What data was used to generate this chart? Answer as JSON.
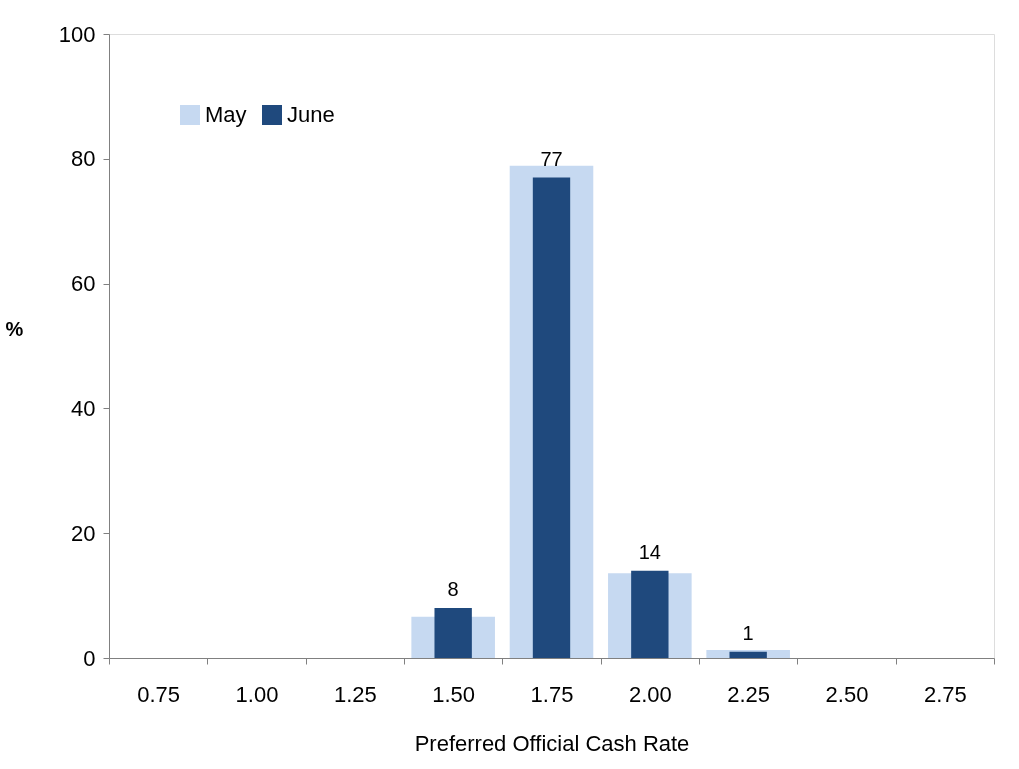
{
  "chart_data": {
    "type": "bar",
    "xlabel": "Preferred  Official Cash Rate",
    "ylabel": "%",
    "categories": [
      "0.75",
      "1.00",
      "1.25",
      "1.50",
      "1.75",
      "2.00",
      "2.25",
      "2.50",
      "2.75"
    ],
    "series": [
      {
        "name": "May",
        "color": "#c6d9f1",
        "values": [
          0,
          0,
          0,
          6.6,
          78.9,
          13.6,
          1.3,
          0,
          0
        ]
      },
      {
        "name": "June",
        "color": "#1f497d",
        "values": [
          0,
          0,
          0,
          8,
          77,
          14,
          1,
          0,
          0
        ],
        "value_labels": [
          null,
          null,
          null,
          "8",
          "77",
          "14",
          "1",
          null,
          null
        ]
      }
    ],
    "ylim": [
      0,
      100
    ],
    "yticks": [
      0,
      20,
      40,
      60,
      80,
      100
    ],
    "grid": false,
    "legend": "top left"
  }
}
